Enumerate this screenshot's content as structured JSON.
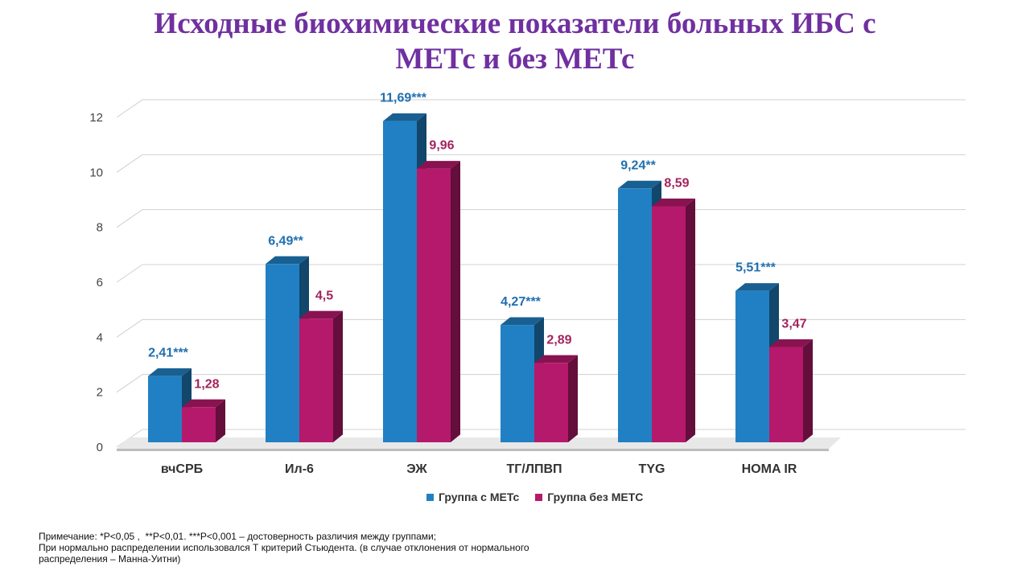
{
  "title": {
    "line1": "Исходные биохимические показатели больных ИБС с",
    "line2": "МЕТс и без МЕТс"
  },
  "chart_data": {
    "type": "bar",
    "categories": [
      "вчСРБ",
      "Ил-6",
      "ЭЖ",
      "ТГ/ЛПВП",
      "TYG",
      "HOMA IR"
    ],
    "series": [
      {
        "name": "Группа с МЕТс",
        "color": "#2180C3",
        "values": [
          2.41,
          6.49,
          11.69,
          4.27,
          9.24,
          5.51
        ],
        "labels": [
          "2,41***",
          "6,49**",
          "11,69***",
          "4,27***",
          "9,24**",
          "5,51***"
        ]
      },
      {
        "name": "Группа без МЕТС",
        "color": "#B5196B",
        "values": [
          1.28,
          4.5,
          9.96,
          2.89,
          8.59,
          3.47
        ],
        "labels": [
          "1,28",
          "4,5",
          "9,96",
          "2,89",
          "8,59",
          "3,47"
        ]
      }
    ],
    "yticks": [
      "0",
      "2",
      "4",
      "6",
      "8",
      "10",
      "12"
    ],
    "ylim": [
      0,
      12
    ],
    "grid": true,
    "legend": "bottom"
  },
  "note": {
    "line1": "Примечание: *Р<0,05 ,  **Р<0,01. ***Р<0,001 – достоверность различия между группами;",
    "line2": "При нормально распределении использовался Т критерий Стьюдента. (в случае отклонения от нормального",
    "line3": "распределения – Манна-Уитни)"
  }
}
